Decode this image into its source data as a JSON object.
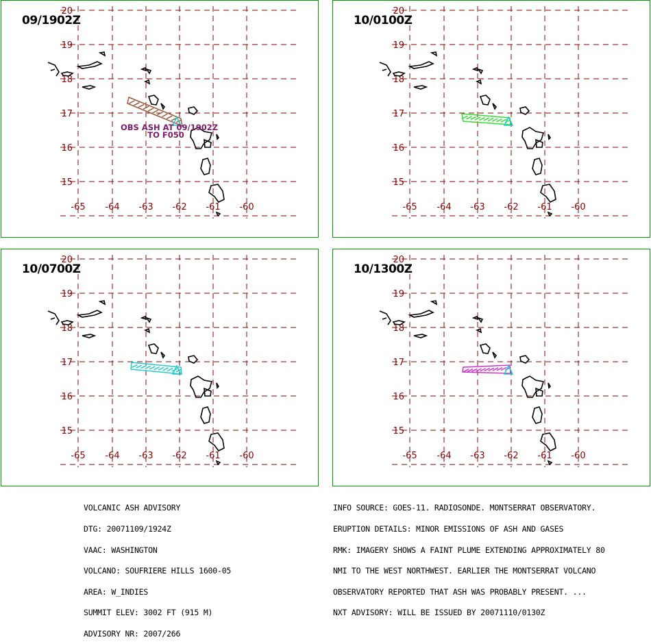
{
  "panels": [
    {
      "time": "09/1902Z",
      "plume_color": "#9b5a3c",
      "annotation": [
        "OBS ASH AT 09/1902Z",
        "TO F050"
      ]
    },
    {
      "time": "10/0100Z",
      "plume_color": "#33dd33",
      "annotation": []
    },
    {
      "time": "10/0700Z",
      "plume_color": "#22cccc",
      "annotation": []
    },
    {
      "time": "10/1300Z",
      "plume_color": "#cc33cc",
      "annotation": []
    }
  ],
  "axes": {
    "lat_labels": [
      "20",
      "19",
      "18",
      "17",
      "16",
      "15"
    ],
    "lon_labels": [
      "-65",
      "-64",
      "-63",
      "-62",
      "-61",
      "-60"
    ]
  },
  "colors": {
    "panel_border": "#009900",
    "grid": "#8b0000",
    "coast": "#000000",
    "volcano_marker": "#22cccc"
  },
  "advisory_left": [
    "VOLCANIC ASH ADVISORY",
    "DTG: 20071109/1924Z",
    "VAAC: WASHINGTON",
    "VOLCANO: SOUFRIERE HILLS 1600-05",
    "AREA: W_INDIES",
    "SUMMIT ELEV: 3002 FT (915 M)",
    "ADVISORY NR: 2007/266"
  ],
  "advisory_right": [
    "INFO SOURCE: GOES-11. RADIOSONDE. MONTSERRAT OBSERVATORY.",
    "ERUPTION DETAILS: MINOR EMISSIONS OF ASH AND GASES",
    "RMK: IMAGERY SHOWS A FAINT PLUME EXTENDING APPROXIMATELY 80",
    "NMI TO THE WEST NORTHWEST. EARLIER THE MONTSERRAT VOLCANO",
    "OBSERVATORY REPORTED THAT ASH WAS PROBABLY PRESENT. ...",
    "NXT ADVISORY: WILL BE ISSUED BY 20071110/0130Z"
  ]
}
